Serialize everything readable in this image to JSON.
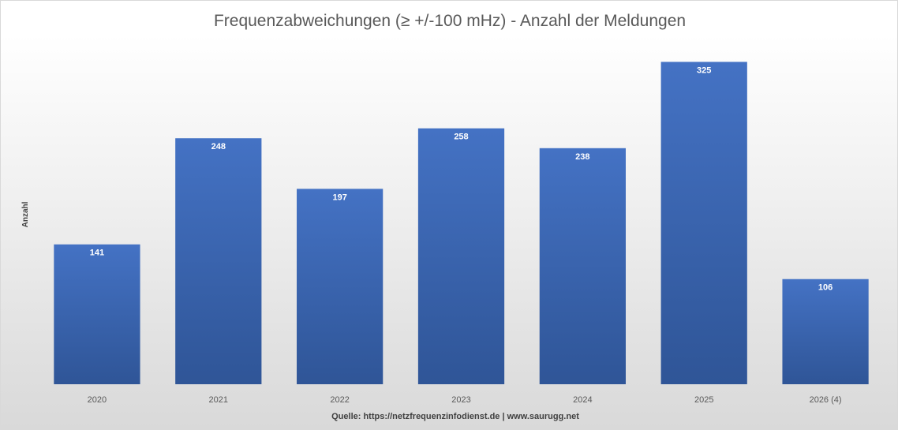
{
  "chart_data": {
    "type": "bar",
    "title": "Frequenzabweichungen (≥ +/-100 mHz) - Anzahl der Meldungen",
    "xlabel": "",
    "ylabel": "Anzahl",
    "categories": [
      "2020",
      "2021",
      "2022",
      "2023",
      "2024",
      "2025",
      "2026 (4)"
    ],
    "series": [
      {
        "values": [
          141,
          248,
          197,
          258,
          238,
          325,
          106
        ]
      }
    ],
    "ylim": [
      0,
      350
    ],
    "grid": false,
    "legend": "none",
    "data_labels": "inside-end",
    "bar_color": "#4472c4",
    "bar_color_dark": "#2f5597",
    "source": "Quelle: https://netzfrequenzinfodienst.de | www.saurugg.net"
  }
}
